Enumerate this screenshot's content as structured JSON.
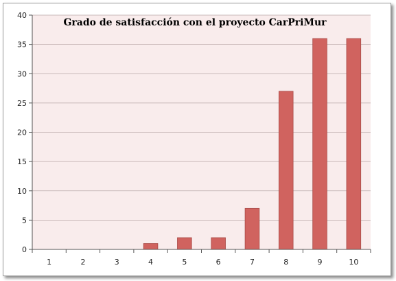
{
  "chart_data": {
    "type": "bar",
    "title": "Grado de satisfacción con el proyecto CarPriMur",
    "categories": [
      "1",
      "2",
      "3",
      "4",
      "5",
      "6",
      "7",
      "8",
      "9",
      "10"
    ],
    "values": [
      0,
      0,
      0,
      1,
      2,
      2,
      7,
      27,
      36,
      36
    ],
    "ylim": [
      0,
      40
    ],
    "yticks": [
      0,
      5,
      10,
      15,
      20,
      25,
      30,
      35,
      40
    ],
    "grid": true,
    "legend": "none",
    "colors": {
      "bar_fill": "#d0635f",
      "bar_stroke": "#a84a47",
      "plot_background": "#f9ecec",
      "grid": "#b9a7a7"
    }
  }
}
